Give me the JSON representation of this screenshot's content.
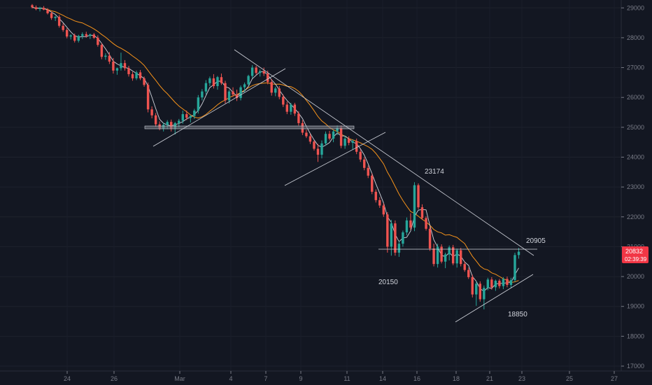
{
  "chart_data": {
    "type": "candlestick",
    "title": "",
    "ylim": [
      17000,
      29100
    ],
    "y_ticks": [
      17000,
      18000,
      19000,
      20000,
      21000,
      22000,
      23000,
      24000,
      25000,
      26000,
      27000,
      28000,
      29000
    ],
    "x_ticks": [
      "24",
      "26",
      "Mar",
      "4",
      "7",
      "9",
      "11",
      "14",
      "16",
      "18",
      "21",
      "23",
      "25",
      "27"
    ],
    "current_price": "20832",
    "countdown": "02:39:39",
    "annotations": [
      "23174",
      "20905",
      "20150",
      "18850"
    ],
    "colors": {
      "background": "#131722",
      "up": "#26a69a",
      "down": "#ef5350",
      "ma_fast": "#d1d4dc",
      "ma_slow": "#f7931a",
      "trendline": "#d1d4dc",
      "axis_text": "#787b86",
      "price_badge": "#f23645"
    },
    "candles": [
      [
        29090,
        29130,
        28980,
        29020
      ],
      [
        29020,
        29080,
        28920,
        28960
      ],
      [
        28960,
        29040,
        28880,
        29000
      ],
      [
        29000,
        29060,
        28920,
        28940
      ],
      [
        28940,
        28990,
        28780,
        28820
      ],
      [
        28820,
        28880,
        28600,
        28660
      ],
      [
        28660,
        28740,
        28560,
        28700
      ],
      [
        28700,
        28760,
        28340,
        28400
      ],
      [
        28400,
        28480,
        28200,
        28260
      ],
      [
        28260,
        28320,
        27980,
        28040
      ],
      [
        28040,
        28120,
        27940,
        28080
      ],
      [
        28080,
        28140,
        27840,
        27900
      ],
      [
        27900,
        28100,
        27840,
        28060
      ],
      [
        28060,
        28180,
        27960,
        28120
      ],
      [
        28120,
        28200,
        28000,
        28060
      ],
      [
        28060,
        28140,
        27960,
        28110
      ],
      [
        28110,
        28160,
        27960,
        28000
      ],
      [
        28000,
        28080,
        27700,
        27760
      ],
      [
        27760,
        27820,
        27280,
        27360
      ],
      [
        27360,
        27480,
        27260,
        27400
      ],
      [
        27400,
        27520,
        27120,
        27200
      ],
      [
        27200,
        27320,
        26800,
        26900
      ],
      [
        26900,
        27000,
        26760,
        26980
      ],
      [
        26980,
        27500,
        26900,
        27150
      ],
      [
        27150,
        27250,
        26900,
        26980
      ],
      [
        26980,
        27060,
        26700,
        26780
      ],
      [
        26780,
        26860,
        26560,
        26640
      ],
      [
        26640,
        26900,
        26580,
        26840
      ],
      [
        26840,
        26920,
        26580,
        26640
      ],
      [
        26640,
        26700,
        26360,
        26420
      ],
      [
        26420,
        26500,
        25500,
        25600
      ],
      [
        25600,
        25700,
        25300,
        25400
      ],
      [
        25400,
        25480,
        25020,
        25100
      ],
      [
        25100,
        25200,
        24900,
        24960
      ],
      [
        24960,
        25160,
        24860,
        25080
      ],
      [
        25080,
        25240,
        24940,
        25180
      ],
      [
        25180,
        25260,
        24860,
        24960
      ],
      [
        24960,
        25180,
        24760,
        25140
      ],
      [
        25140,
        25280,
        25000,
        25220
      ],
      [
        25220,
        25560,
        25120,
        25440
      ],
      [
        25440,
        25560,
        25240,
        25320
      ],
      [
        25320,
        25420,
        25160,
        25380
      ],
      [
        25380,
        25620,
        25280,
        25560
      ],
      [
        25560,
        26080,
        25460,
        26000
      ],
      [
        26000,
        26280,
        25900,
        26200
      ],
      [
        26200,
        26580,
        26100,
        26480
      ],
      [
        26480,
        26700,
        26380,
        26640
      ],
      [
        26640,
        26780,
        26300,
        26380
      ],
      [
        26380,
        26720,
        26260,
        26680
      ],
      [
        26680,
        26800,
        26420,
        26480
      ],
      [
        26480,
        26560,
        25800,
        25900
      ],
      [
        25900,
        26260,
        25800,
        26200
      ],
      [
        26200,
        26340,
        26020,
        26100
      ],
      [
        26100,
        26260,
        25880,
        25980
      ],
      [
        25980,
        26400,
        25900,
        26340
      ],
      [
        26340,
        26500,
        26180,
        26440
      ],
      [
        26440,
        26760,
        26400,
        26720
      ],
      [
        26720,
        27080,
        26640,
        27000
      ],
      [
        27000,
        27060,
        26760,
        26820
      ],
      [
        26820,
        26940,
        26700,
        26880
      ],
      [
        26880,
        27000,
        26720,
        26800
      ],
      [
        26800,
        26900,
        26440,
        26520
      ],
      [
        26520,
        26620,
        26060,
        26160
      ],
      [
        26160,
        26360,
        26040,
        26300
      ],
      [
        26300,
        26380,
        25940,
        26020
      ],
      [
        26020,
        26100,
        25680,
        25760
      ],
      [
        25760,
        25860,
        25440,
        25520
      ],
      [
        25520,
        25820,
        25420,
        25760
      ],
      [
        25760,
        25820,
        25380,
        25460
      ],
      [
        25460,
        25540,
        25060,
        25140
      ],
      [
        25140,
        25240,
        24740,
        24820
      ],
      [
        24820,
        24920,
        24640,
        24700
      ],
      [
        24700,
        24780,
        24440,
        24520
      ],
      [
        24520,
        24560,
        24220,
        24280
      ],
      [
        24280,
        24440,
        23840,
        24080
      ],
      [
        24080,
        24560,
        23960,
        24460
      ],
      [
        24460,
        24860,
        24380,
        24780
      ],
      [
        24780,
        24880,
        24560,
        24620
      ],
      [
        24620,
        24920,
        24500,
        24860
      ],
      [
        24860,
        25060,
        24740,
        24980
      ],
      [
        24980,
        25060,
        24300,
        24380
      ],
      [
        24380,
        24720,
        24280,
        24620
      ],
      [
        24620,
        24700,
        24400,
        24480
      ],
      [
        24480,
        24600,
        24260,
        24540
      ],
      [
        24540,
        24620,
        24100,
        24180
      ],
      [
        24180,
        24260,
        23840,
        23920
      ],
      [
        23920,
        24000,
        23560,
        23640
      ],
      [
        23640,
        23720,
        23300,
        23380
      ],
      [
        23380,
        23460,
        22760,
        22840
      ],
      [
        22840,
        22920,
        22480,
        22560
      ],
      [
        22560,
        22660,
        22300,
        22380
      ],
      [
        22380,
        22460,
        22000,
        22080
      ],
      [
        22080,
        22160,
        20800,
        21000
      ],
      [
        21000,
        21900,
        20700,
        21780
      ],
      [
        21780,
        21880,
        20700,
        20800
      ],
      [
        20800,
        21200,
        20660,
        21100
      ],
      [
        21100,
        21540,
        21000,
        21480
      ],
      [
        21480,
        21980,
        21380,
        21880
      ],
      [
        21880,
        22120,
        21560,
        21640
      ],
      [
        21640,
        23160,
        21520,
        23060
      ],
      [
        23060,
        23120,
        22260,
        22320
      ],
      [
        22320,
        22420,
        21900,
        21960
      ],
      [
        21960,
        22020,
        21540,
        21600
      ],
      [
        21600,
        21680,
        20860,
        20940
      ],
      [
        20940,
        21100,
        20340,
        20420
      ],
      [
        20420,
        21100,
        20300,
        21000
      ],
      [
        21000,
        21080,
        20440,
        20500
      ],
      [
        20500,
        20800,
        20280,
        20740
      ],
      [
        20740,
        21040,
        20540,
        20980
      ],
      [
        20980,
        21060,
        20380,
        20440
      ],
      [
        20440,
        20940,
        20300,
        20880
      ],
      [
        20880,
        20960,
        20340,
        20420
      ],
      [
        20420,
        20500,
        20160,
        20220
      ],
      [
        20220,
        20300,
        19920,
        19980
      ],
      [
        19980,
        20060,
        19300,
        19400
      ],
      [
        19400,
        19840,
        19020,
        19760
      ],
      [
        19760,
        19840,
        19160,
        19240
      ],
      [
        19240,
        19700,
        18900,
        19620
      ],
      [
        19620,
        19960,
        19540,
        19900
      ],
      [
        19900,
        19980,
        19560,
        19640
      ],
      [
        19640,
        19900,
        19520,
        19860
      ],
      [
        19860,
        19920,
        19600,
        19680
      ],
      [
        19680,
        19980,
        19580,
        19920
      ],
      [
        19920,
        20000,
        19640,
        19720
      ],
      [
        19720,
        19960,
        19620,
        19880
      ],
      [
        19880,
        20800,
        19820,
        20720
      ],
      [
        20720,
        20960,
        20600,
        20832
      ]
    ]
  }
}
